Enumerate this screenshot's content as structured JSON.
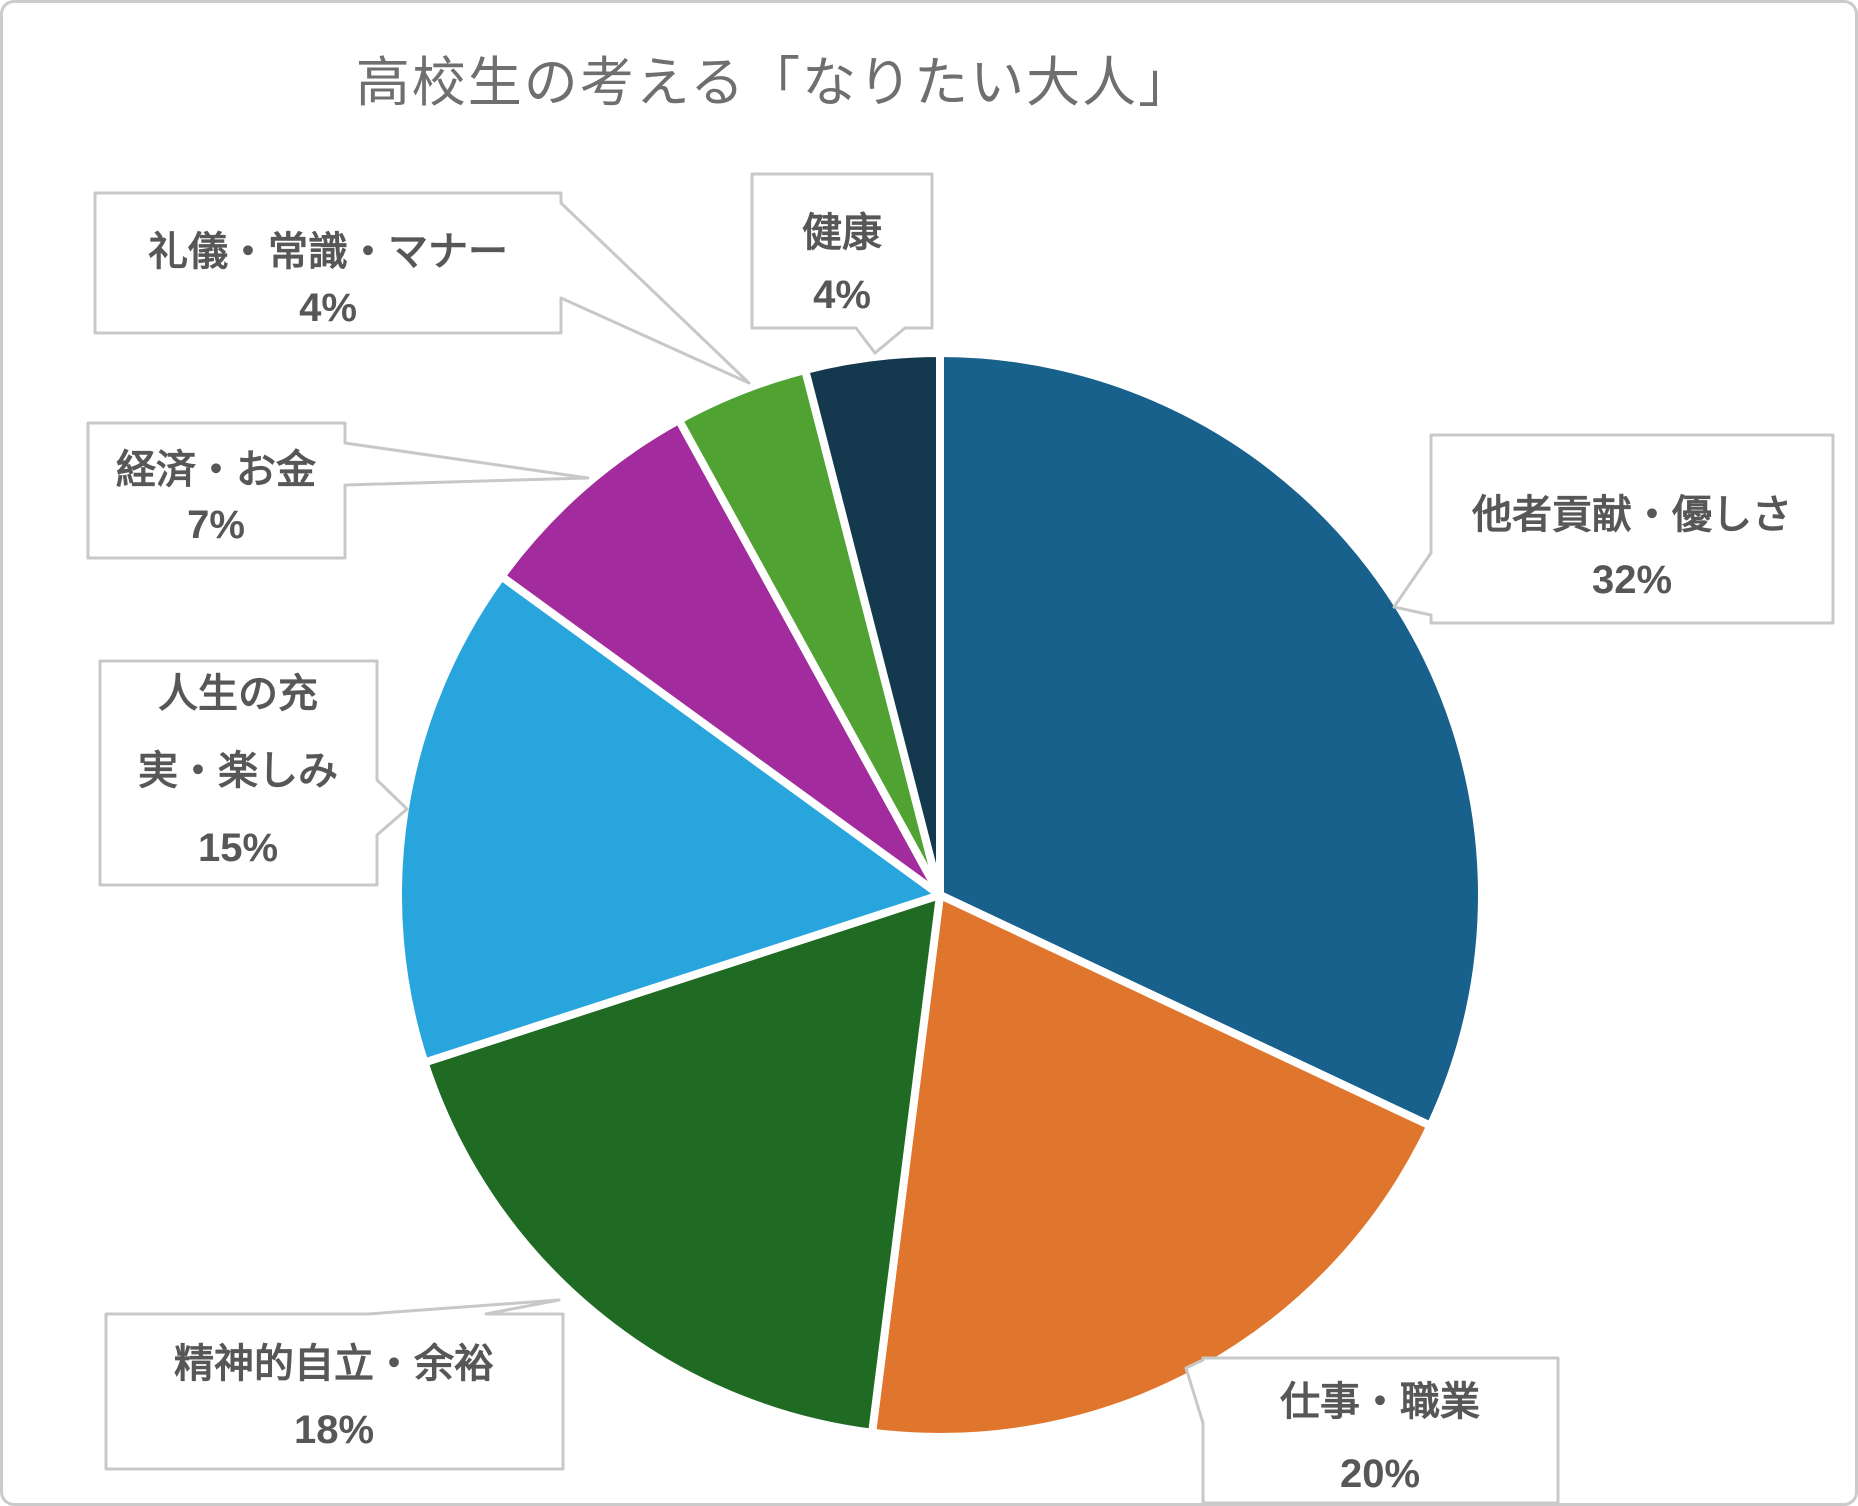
{
  "chart_data": {
    "type": "pie",
    "title": "高校生の考える「なりたい大人」",
    "start_angle_deg": 0,
    "direction": "clockwise",
    "unit": "%",
    "legend": "none",
    "label_style": "callout boxes with gray leader pointers, white slice separators",
    "categories": [
      "他者貢献・優しさ",
      "仕事・職業",
      "精神的自立・余裕",
      "人生の充実・楽しみ",
      "経済・お金",
      "礼儀・常識・マナー",
      "健康"
    ],
    "values": [
      32,
      20,
      18,
      15,
      7,
      4,
      4
    ],
    "slices": [
      {
        "label": "他者貢献・優しさ",
        "value": 32,
        "color": "#17618C"
      },
      {
        "label": "仕事・職業",
        "value": 20,
        "color": "#E0762E"
      },
      {
        "label": "精神的自立・余裕",
        "value": 18,
        "color": "#206B24"
      },
      {
        "label": "人生の充実・楽しみ",
        "value": 15,
        "color": "#29A5DE"
      },
      {
        "label": "経済・お金",
        "value": 7,
        "color": "#A22C9E"
      },
      {
        "label": "礼儀・常識・マナー",
        "value": 4,
        "color": "#50A332"
      },
      {
        "label": "健康",
        "value": 4,
        "color": "#14384E"
      }
    ]
  },
  "callouts": [
    {
      "id": "tasha",
      "lines": [
        "他者貢献・優しさ",
        "32%"
      ]
    },
    {
      "id": "shigoto",
      "lines": [
        "仕事・職業",
        "20%"
      ]
    },
    {
      "id": "seishin",
      "lines": [
        "精神的自立・余裕",
        "18%"
      ]
    },
    {
      "id": "jinsei",
      "lines": [
        "人生の充",
        "実・楽しみ",
        "15%"
      ]
    },
    {
      "id": "keizai",
      "lines": [
        "経済・お金",
        "7%"
      ]
    },
    {
      "id": "reigi",
      "lines": [
        "礼儀・常識・マナー",
        "4%"
      ]
    },
    {
      "id": "kenko",
      "lines": [
        "健康",
        "4%"
      ]
    }
  ],
  "colors": {
    "background": "#FFFFFF",
    "slice_stroke": "#FFFFFF",
    "callout_border": "#C8C8C8",
    "callout_fill": "#FFFFFF",
    "label_text": "#575757",
    "title_text": "#6F6F6F",
    "frame_border": "#CBCBCB"
  }
}
